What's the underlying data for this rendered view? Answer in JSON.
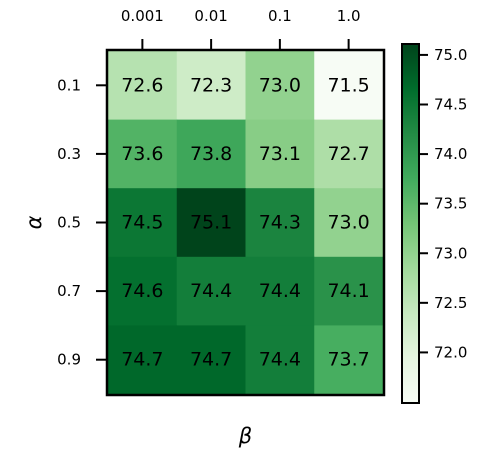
{
  "chart_data": {
    "type": "heatmap",
    "title": "",
    "xlabel": "β",
    "ylabel": "α",
    "x_categories": [
      "0.001",
      "0.01",
      "0.1",
      "1.0"
    ],
    "y_categories": [
      "0.1",
      "0.3",
      "0.5",
      "0.7",
      "0.9"
    ],
    "x_axis_position": "top",
    "values": [
      [
        72.6,
        72.3,
        73.0,
        71.5
      ],
      [
        73.6,
        73.8,
        73.1,
        72.7
      ],
      [
        74.5,
        75.1,
        74.3,
        73.0
      ],
      [
        74.6,
        74.4,
        74.4,
        74.1
      ],
      [
        74.7,
        74.7,
        74.4,
        73.7
      ]
    ],
    "value_labels": [
      [
        "72.6",
        "72.3",
        "73.0",
        "71.5"
      ],
      [
        "73.6",
        "73.8",
        "73.1",
        "72.7"
      ],
      [
        "74.5",
        "75.1",
        "74.3",
        "73.0"
      ],
      [
        "74.6",
        "74.4",
        "74.4",
        "74.1"
      ],
      [
        "74.7",
        "74.7",
        "74.4",
        "73.7"
      ]
    ],
    "colormap": "Greens",
    "color_low": "#f7fcf5",
    "color_high": "#00441b",
    "vmin": 71.5,
    "vmax": 75.1,
    "colorbar_ticks": [
      "72.0",
      "72.5",
      "73.0",
      "73.5",
      "74.0",
      "74.5",
      "75.0"
    ],
    "colorbar_position": "right",
    "grid": false
  }
}
